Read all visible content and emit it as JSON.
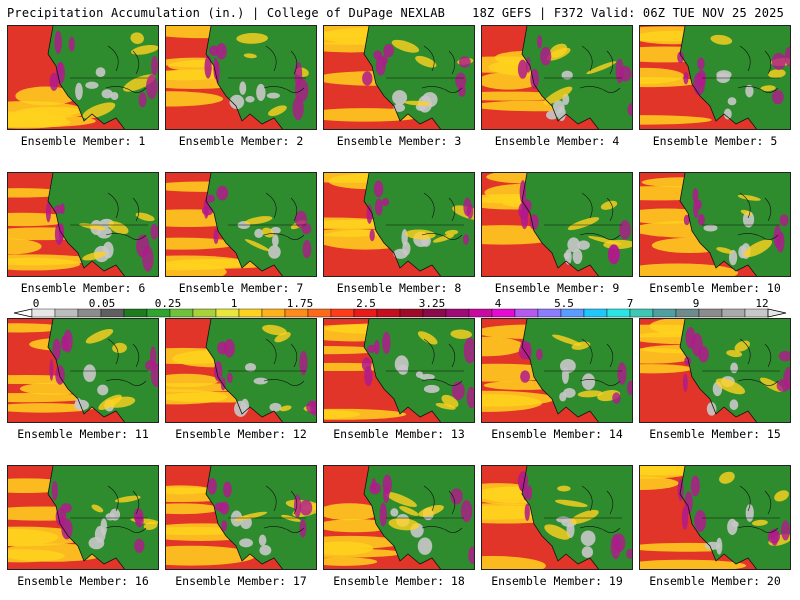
{
  "header": {
    "left": "Precipitation Accumulation (in.) | College of DuPage NEXLAB",
    "right": "18Z GEFS | F372 Valid: 06Z TUE NOV 25 2025"
  },
  "caption_prefix": "Ensemble Member: ",
  "members": [
    {
      "label": "Ensemble Member: 1"
    },
    {
      "label": "Ensemble Member: 2"
    },
    {
      "label": "Ensemble Member: 3"
    },
    {
      "label": "Ensemble Member: 4"
    },
    {
      "label": "Ensemble Member: 5"
    },
    {
      "label": "Ensemble Member: 6"
    },
    {
      "label": "Ensemble Member: 7"
    },
    {
      "label": "Ensemble Member: 8"
    },
    {
      "label": "Ensemble Member: 9"
    },
    {
      "label": "Ensemble Member: 10"
    },
    {
      "label": "Ensemble Member: 11"
    },
    {
      "label": "Ensemble Member: 12"
    },
    {
      "label": "Ensemble Member: 13"
    },
    {
      "label": "Ensemble Member: 14"
    },
    {
      "label": "Ensemble Member: 15"
    },
    {
      "label": "Ensemble Member: 16"
    },
    {
      "label": "Ensemble Member: 17"
    },
    {
      "label": "Ensemble Member: 18"
    },
    {
      "label": "Ensemble Member: 19"
    },
    {
      "label": "Ensemble Member: 20"
    }
  ],
  "colorbar": {
    "tick_labels": [
      "0",
      "0.05",
      "0.25",
      "1",
      "1.75",
      "2.5",
      "3.25",
      "4",
      "5.5",
      "7",
      "9",
      "12"
    ],
    "colors": [
      "#e6e6e6",
      "#bdbdbd",
      "#8c8c8c",
      "#5f5f5f",
      "#1e7b1e",
      "#2fa52f",
      "#6fc23b",
      "#a8d13a",
      "#e8e83a",
      "#ffd21f",
      "#ffb21a",
      "#ff8c1a",
      "#ff6a1a",
      "#ff3b1a",
      "#e81a1a",
      "#c40f1f",
      "#9e0a28",
      "#8a0a4a",
      "#a00a78",
      "#c80aa0",
      "#e60ad2",
      "#b45af0",
      "#8c7cff",
      "#5a9cff",
      "#1ec8ff",
      "#28e6e6",
      "#3cc8b4",
      "#50a0a0",
      "#6e8c8c",
      "#8c8c8c",
      "#aaaaaa",
      "#c8c8c8"
    ]
  },
  "palette": {
    "ocean": "#e2352a",
    "land": "#2e8c2e",
    "dry": "#c8c8c8",
    "heavy": "#ffd21f",
    "extreme": "#b01a8c"
  }
}
